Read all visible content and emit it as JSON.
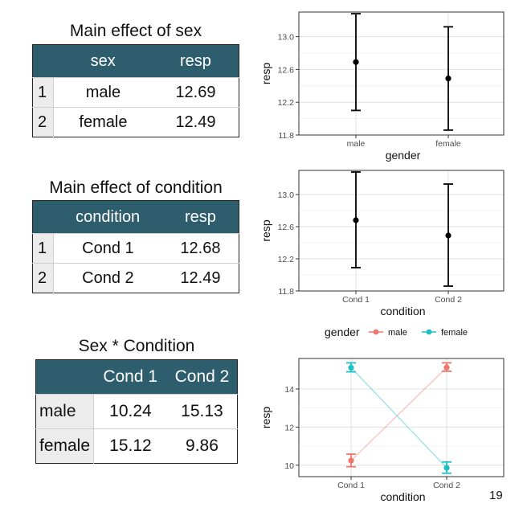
{
  "page_number": "19",
  "tables": [
    {
      "title": "Main effect of sex",
      "headers": [
        "",
        "sex",
        "resp"
      ],
      "rows": [
        [
          "1",
          "male",
          "12.69"
        ],
        [
          "2",
          "female",
          "12.49"
        ]
      ]
    },
    {
      "title": "Main effect of condition",
      "headers": [
        "",
        "condition",
        "resp"
      ],
      "rows": [
        [
          "1",
          "Cond 1",
          "12.68"
        ],
        [
          "2",
          "Cond 2",
          "12.49"
        ]
      ]
    },
    {
      "title": "Sex * Condition",
      "headers": [
        "",
        "Cond 1",
        "Cond 2"
      ],
      "rows": [
        [
          "male",
          "10.24",
          "15.13"
        ],
        [
          "female",
          "15.12",
          "9.86"
        ]
      ]
    }
  ],
  "chart_data": [
    {
      "type": "scatter",
      "xlabel": "gender",
      "ylabel": "resp",
      "categories": [
        "male",
        "female"
      ],
      "y": [
        12.69,
        12.49
      ],
      "ymin": [
        12.1,
        11.86
      ],
      "ymax": [
        13.28,
        13.12
      ],
      "ylim": [
        11.8,
        13.3
      ],
      "yticks": [
        11.8,
        12.2,
        12.6,
        13.0
      ],
      "ytick_labels": [
        "11.8",
        "12.2",
        "12.6",
        "13.0"
      ],
      "grid": true,
      "error_bars": true
    },
    {
      "type": "scatter",
      "xlabel": "condition",
      "ylabel": "resp",
      "categories": [
        "Cond 1",
        "Cond 2"
      ],
      "y": [
        12.68,
        12.49
      ],
      "ymin": [
        12.09,
        11.86
      ],
      "ymax": [
        13.28,
        13.13
      ],
      "ylim": [
        11.8,
        13.3
      ],
      "yticks": [
        11.8,
        12.2,
        12.6,
        13.0
      ],
      "ytick_labels": [
        "11.8",
        "12.2",
        "12.6",
        "13.0"
      ],
      "grid": true,
      "error_bars": true
    },
    {
      "type": "line",
      "xlabel": "condition",
      "ylabel": "resp",
      "categories": [
        "Cond 1",
        "Cond 2"
      ],
      "legend_title": "gender",
      "legend_position": "top",
      "series": [
        {
          "name": "male",
          "color": "#f0766c",
          "values": [
            10.24,
            15.13
          ],
          "ymin": [
            9.92,
            14.93
          ],
          "ymax": [
            10.58,
            15.37
          ]
        },
        {
          "name": "female",
          "color": "#1fbfc3",
          "values": [
            15.12,
            9.86
          ],
          "ymin": [
            14.9,
            9.58
          ],
          "ymax": [
            15.37,
            10.17
          ]
        }
      ],
      "ylim": [
        9.4,
        15.6
      ],
      "yticks": [
        10,
        12,
        14
      ],
      "ytick_labels": [
        "10",
        "12",
        "14"
      ],
      "grid": true,
      "error_bars": true
    }
  ]
}
